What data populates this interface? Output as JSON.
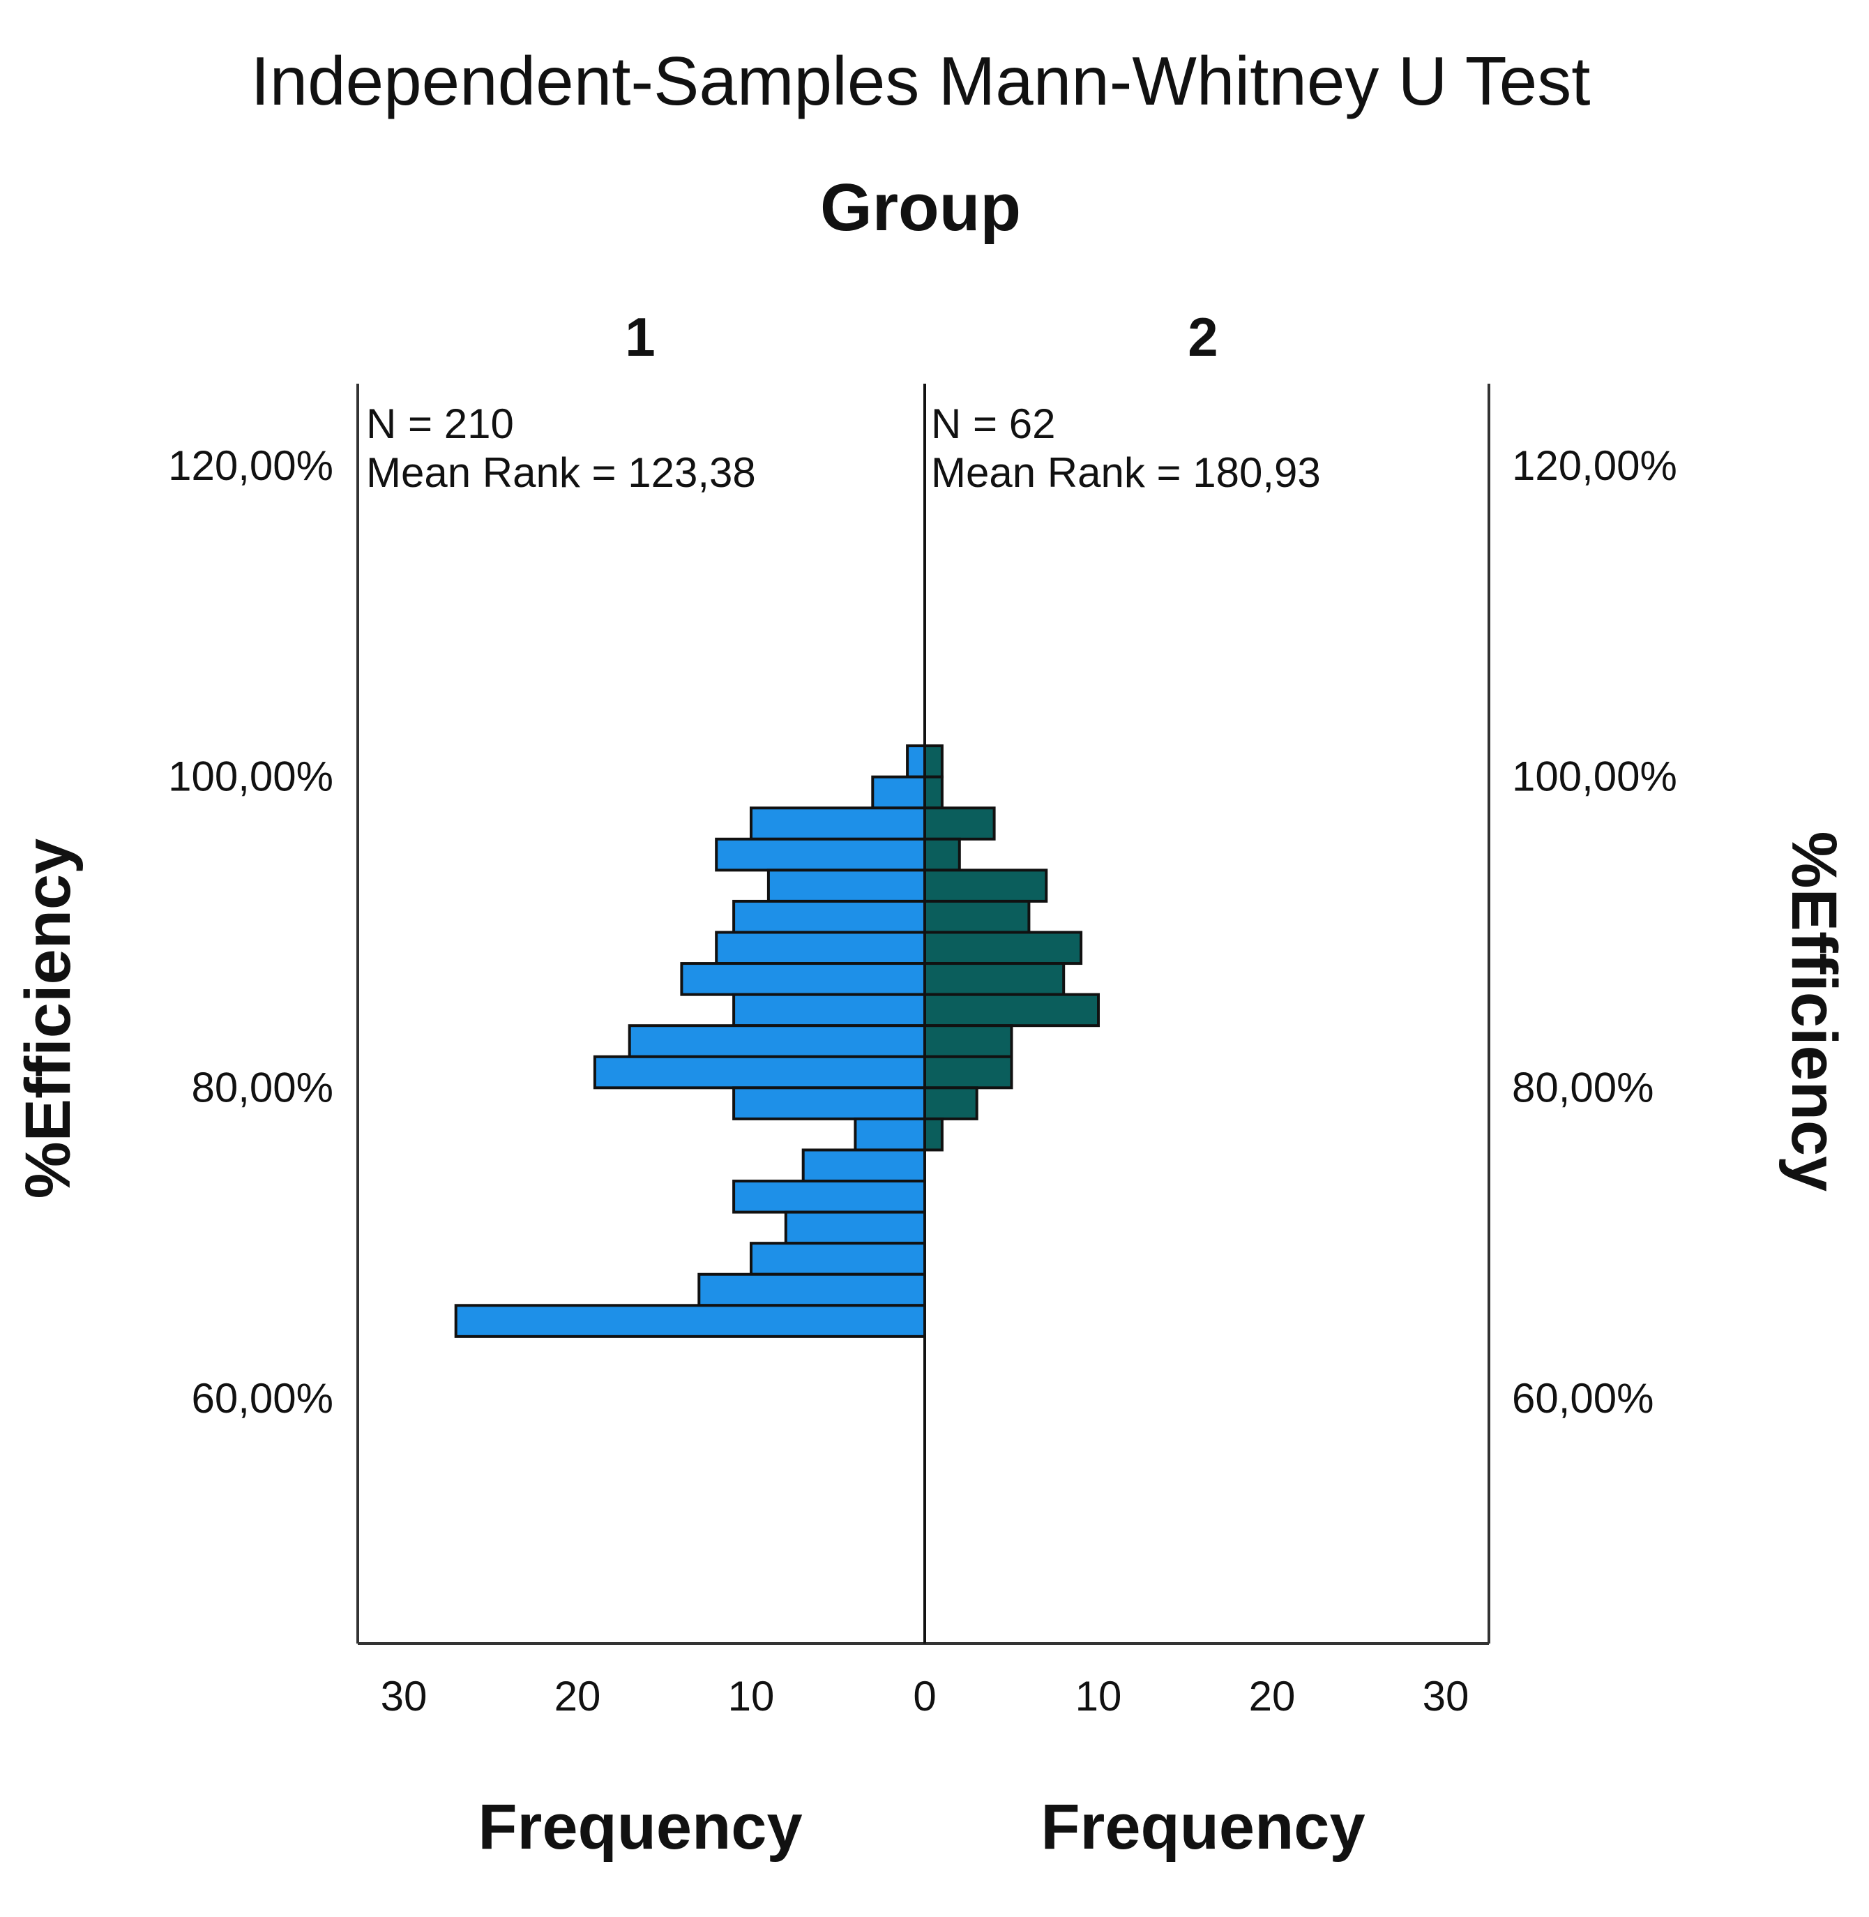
{
  "chart_data": {
    "type": "bar",
    "orientation": "horizontal-back-to-back",
    "title": "Independent-Samples Mann-Whitney U Test",
    "subtitle": "Group",
    "ylabel": "%Efficiency",
    "xlabel": "Frequency",
    "ylim": [
      45,
      125
    ],
    "yticks": [
      "60,00%",
      "80,00%",
      "100,00%",
      "120,00%"
    ],
    "ytick_values": [
      60,
      80,
      100,
      120
    ],
    "xlim": [
      0,
      30
    ],
    "xticks": [
      "0",
      "10",
      "20",
      "30"
    ],
    "xtick_values": [
      0,
      10,
      20,
      30
    ],
    "bin_width": 2,
    "groups": [
      {
        "name": "1",
        "side": "left",
        "color": "#1e90e8",
        "n_text": "N = 210",
        "mean_rank_text": "Mean Rank = 123,38",
        "bins": [
          {
            "center": 101,
            "count": 1
          },
          {
            "center": 99,
            "count": 3
          },
          {
            "center": 97,
            "count": 10
          },
          {
            "center": 95,
            "count": 12
          },
          {
            "center": 93,
            "count": 9
          },
          {
            "center": 91,
            "count": 11
          },
          {
            "center": 89,
            "count": 12
          },
          {
            "center": 87,
            "count": 14
          },
          {
            "center": 85,
            "count": 11
          },
          {
            "center": 83,
            "count": 17
          },
          {
            "center": 81,
            "count": 19
          },
          {
            "center": 79,
            "count": 11
          },
          {
            "center": 77,
            "count": 4
          },
          {
            "center": 75,
            "count": 7
          },
          {
            "center": 73,
            "count": 11
          },
          {
            "center": 71,
            "count": 8
          },
          {
            "center": 69,
            "count": 10
          },
          {
            "center": 67,
            "count": 13
          },
          {
            "center": 65,
            "count": 27
          }
        ]
      },
      {
        "name": "2",
        "side": "right",
        "color": "#0b5e5c",
        "n_text": "N = 62",
        "mean_rank_text": "Mean Rank = 180,93",
        "bins": [
          {
            "center": 101,
            "count": 1
          },
          {
            "center": 99,
            "count": 1
          },
          {
            "center": 97,
            "count": 4
          },
          {
            "center": 95,
            "count": 2
          },
          {
            "center": 93,
            "count": 7
          },
          {
            "center": 91,
            "count": 6
          },
          {
            "center": 89,
            "count": 9
          },
          {
            "center": 87,
            "count": 8
          },
          {
            "center": 85,
            "count": 10
          },
          {
            "center": 83,
            "count": 5
          },
          {
            "center": 81,
            "count": 5
          },
          {
            "center": 79,
            "count": 3
          },
          {
            "center": 77,
            "count": 1
          }
        ]
      }
    ],
    "grid": false,
    "legend": "none"
  }
}
